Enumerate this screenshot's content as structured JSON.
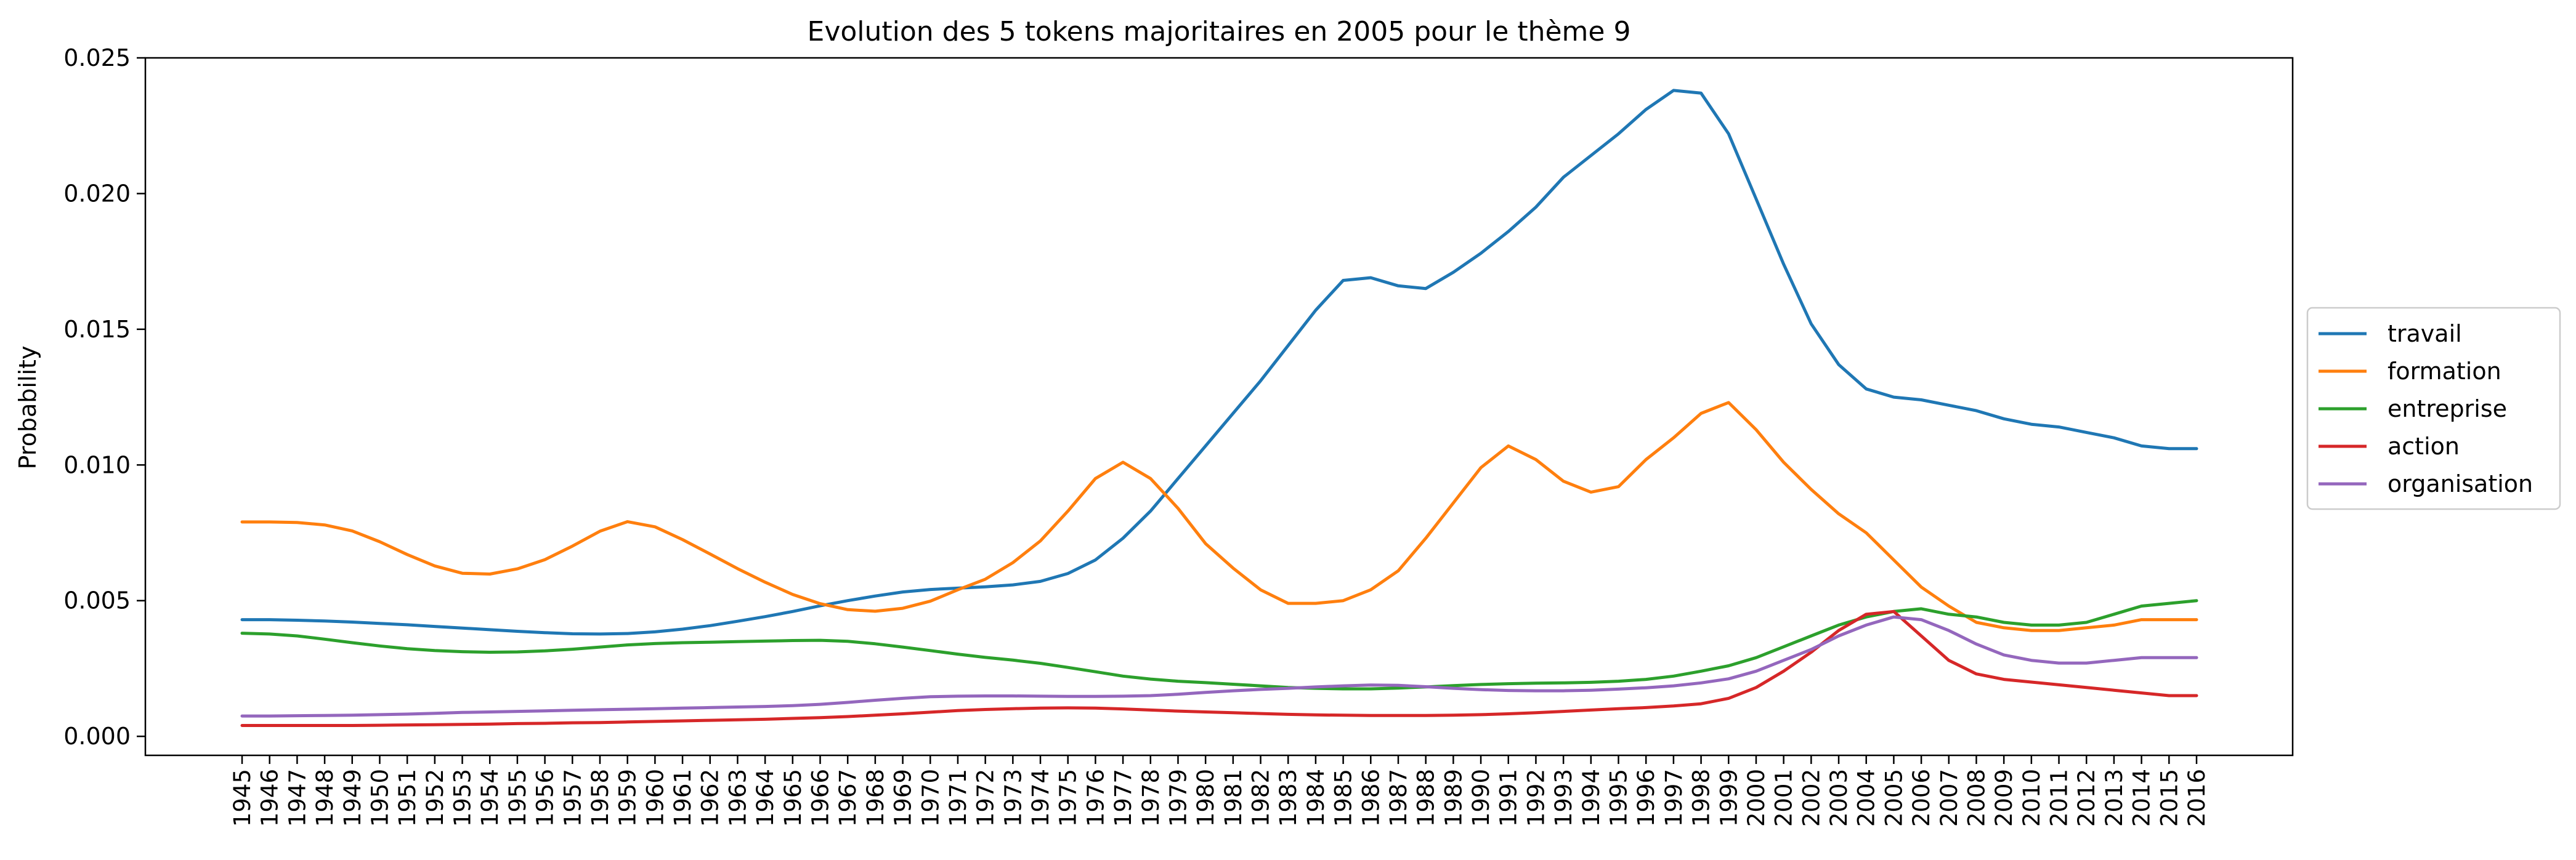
{
  "chart_data": {
    "type": "line",
    "title": "Evolution des 5 tokens majoritaires en 2005 pour le thème 9",
    "xlabel": "",
    "ylabel": "Probability",
    "ylim": [
      -0.0007,
      0.025
    ],
    "yticks": [
      "0.000",
      "0.005",
      "0.010",
      "0.015",
      "0.020",
      "0.025"
    ],
    "ytick_values": [
      0,
      0.005,
      0.01,
      0.015,
      0.02,
      0.025
    ],
    "x": [
      1945,
      1946,
      1947,
      1948,
      1949,
      1950,
      1951,
      1952,
      1953,
      1954,
      1955,
      1956,
      1957,
      1958,
      1959,
      1960,
      1961,
      1962,
      1963,
      1964,
      1965,
      1966,
      1967,
      1968,
      1969,
      1970,
      1971,
      1972,
      1973,
      1974,
      1975,
      1976,
      1977,
      1978,
      1979,
      1980,
      1981,
      1982,
      1983,
      1984,
      1985,
      1986,
      1987,
      1988,
      1989,
      1990,
      1991,
      1992,
      1993,
      1994,
      1995,
      1996,
      1997,
      1998,
      1999,
      2000,
      2001,
      2002,
      2003,
      2004,
      2005,
      2006,
      2007,
      2008,
      2009,
      2010,
      2011,
      2012,
      2013,
      2014,
      2015,
      2016
    ],
    "grid": false,
    "legend_position": "center-right-outside",
    "series": [
      {
        "name": "travail",
        "color": "#1f77b4",
        "values": [
          0.0043,
          0.0043,
          0.00428,
          0.00425,
          0.00421,
          0.00416,
          0.00411,
          0.00405,
          0.00399,
          0.00393,
          0.00387,
          0.00382,
          0.00378,
          0.00377,
          0.00379,
          0.00385,
          0.00395,
          0.00408,
          0.00424,
          0.00441,
          0.0046,
          0.00481,
          0.005,
          0.00517,
          0.00532,
          0.00541,
          0.00546,
          0.00551,
          0.00558,
          0.00571,
          0.006,
          0.0065,
          0.0073,
          0.0083,
          0.0095,
          0.0107,
          0.0119,
          0.0131,
          0.0144,
          0.0157,
          0.0168,
          0.0169,
          0.0166,
          0.0165,
          0.0171,
          0.0178,
          0.0186,
          0.0195,
          0.0206,
          0.0214,
          0.0222,
          0.0231,
          0.0238,
          0.0237,
          0.0222,
          0.0198,
          0.0174,
          0.0152,
          0.0137,
          0.0128,
          0.0125,
          0.0124,
          0.0122,
          0.012,
          0.0117,
          0.0115,
          0.0114,
          0.0112,
          0.011,
          0.0107,
          0.0106,
          0.0106
        ]
      },
      {
        "name": "formation",
        "color": "#ff7f0e",
        "values": [
          0.0079,
          0.0079,
          0.00788,
          0.00779,
          0.00757,
          0.00717,
          0.0067,
          0.00628,
          0.00601,
          0.00598,
          0.00617,
          0.00651,
          0.00701,
          0.00756,
          0.00791,
          0.00772,
          0.00725,
          0.00672,
          0.00618,
          0.00568,
          0.00523,
          0.00489,
          0.00467,
          0.00461,
          0.00472,
          0.00498,
          0.0054,
          0.00579,
          0.0064,
          0.0072,
          0.0083,
          0.0095,
          0.0101,
          0.0095,
          0.0084,
          0.0071,
          0.0062,
          0.0054,
          0.0049,
          0.0049,
          0.005,
          0.0054,
          0.0061,
          0.0073,
          0.0086,
          0.0099,
          0.0107,
          0.0102,
          0.0094,
          0.009,
          0.0092,
          0.0102,
          0.011,
          0.0119,
          0.0123,
          0.0113,
          0.0101,
          0.0091,
          0.0082,
          0.0075,
          0.0065,
          0.0055,
          0.0048,
          0.0042,
          0.004,
          0.0039,
          0.0039,
          0.004,
          0.0041,
          0.0043,
          0.0043,
          0.0043
        ]
      },
      {
        "name": "entreprise",
        "color": "#2ca02c",
        "values": [
          0.0038,
          0.00377,
          0.0037,
          0.00358,
          0.00345,
          0.00333,
          0.00323,
          0.00316,
          0.00312,
          0.0031,
          0.00311,
          0.00315,
          0.00321,
          0.00329,
          0.00337,
          0.00342,
          0.00345,
          0.00347,
          0.00349,
          0.00351,
          0.00353,
          0.00354,
          0.0035,
          0.00341,
          0.00329,
          0.00316,
          0.00303,
          0.00291,
          0.00281,
          0.00269,
          0.00254,
          0.00238,
          0.00222,
          0.00211,
          0.00203,
          0.00198,
          0.00192,
          0.00186,
          0.0018,
          0.00177,
          0.00175,
          0.00175,
          0.00178,
          0.00182,
          0.00187,
          0.00191,
          0.00194,
          0.00196,
          0.00197,
          0.00199,
          0.00203,
          0.0021,
          0.00222,
          0.0024,
          0.0026,
          0.0029,
          0.0033,
          0.0037,
          0.0041,
          0.0044,
          0.0046,
          0.0047,
          0.0045,
          0.0044,
          0.0042,
          0.0041,
          0.0041,
          0.0042,
          0.0045,
          0.0048,
          0.0049,
          0.005
        ]
      },
      {
        "name": "action",
        "color": "#d62728",
        "values": [
          0.0004,
          0.0004,
          0.0004,
          0.0004,
          0.0004,
          0.00041,
          0.00042,
          0.00043,
          0.00044,
          0.00045,
          0.00047,
          0.00048,
          0.0005,
          0.00051,
          0.00053,
          0.00055,
          0.00057,
          0.00059,
          0.00061,
          0.00063,
          0.00066,
          0.00069,
          0.00073,
          0.00078,
          0.00083,
          0.00089,
          0.00095,
          0.00099,
          0.00102,
          0.00104,
          0.00105,
          0.00104,
          0.00101,
          0.00097,
          0.00093,
          0.0009,
          0.00087,
          0.00084,
          0.00081,
          0.00079,
          0.00078,
          0.00077,
          0.00077,
          0.00077,
          0.00078,
          0.0008,
          0.00083,
          0.00087,
          0.00092,
          0.00097,
          0.00102,
          0.00106,
          0.00112,
          0.0012,
          0.0014,
          0.0018,
          0.0024,
          0.0031,
          0.0039,
          0.0045,
          0.0046,
          0.0037,
          0.0028,
          0.0023,
          0.0021,
          0.002,
          0.0019,
          0.0018,
          0.0017,
          0.0016,
          0.0015,
          0.0015
        ]
      },
      {
        "name": "organisation",
        "color": "#9467bd",
        "values": [
          0.00075,
          0.00075,
          0.00076,
          0.00077,
          0.00078,
          0.0008,
          0.00082,
          0.00085,
          0.00088,
          0.0009,
          0.00092,
          0.00094,
          0.00096,
          0.00098,
          0.001,
          0.00102,
          0.00104,
          0.00106,
          0.00108,
          0.0011,
          0.00113,
          0.00118,
          0.00125,
          0.00133,
          0.0014,
          0.00146,
          0.00148,
          0.00149,
          0.00149,
          0.00148,
          0.00147,
          0.00147,
          0.00148,
          0.0015,
          0.00155,
          0.00162,
          0.00168,
          0.00173,
          0.00177,
          0.00182,
          0.00186,
          0.00189,
          0.00188,
          0.00183,
          0.00177,
          0.00172,
          0.00169,
          0.00168,
          0.00168,
          0.0017,
          0.00174,
          0.00179,
          0.00186,
          0.00197,
          0.00212,
          0.0024,
          0.0028,
          0.0032,
          0.0037,
          0.0041,
          0.0044,
          0.0043,
          0.0039,
          0.0034,
          0.003,
          0.0028,
          0.0027,
          0.0027,
          0.0028,
          0.0029,
          0.0029,
          0.0029
        ]
      }
    ]
  }
}
